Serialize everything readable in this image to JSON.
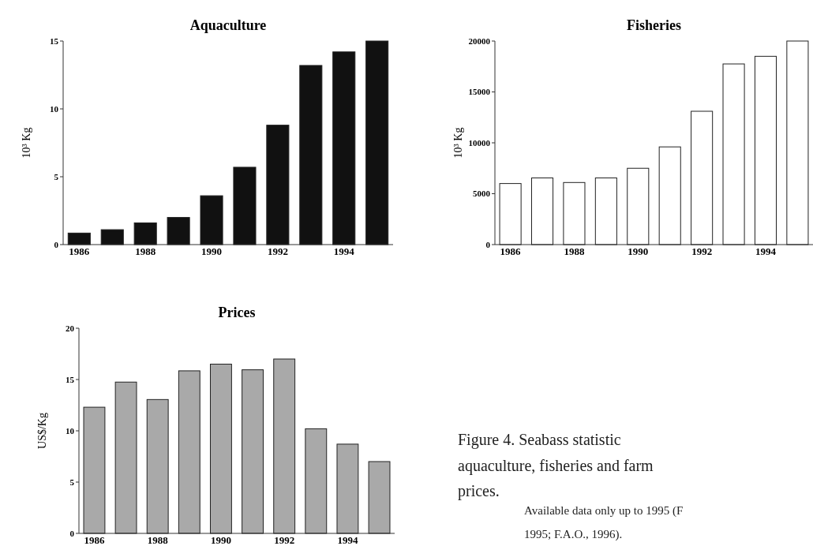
{
  "chart_data": [
    {
      "type": "bar",
      "title": "Aquaculture",
      "ylabel": "10³ Kg",
      "categories": [
        "1986",
        null,
        "1988",
        null,
        "1990",
        null,
        "1992",
        null,
        "1994",
        null
      ],
      "values": [
        0.85,
        1.1,
        1.6,
        2.0,
        3.6,
        5.7,
        8.8,
        13.2,
        14.2,
        15
      ],
      "color": "#111111",
      "ylim": [
        0,
        15
      ],
      "yticks": [
        0,
        5,
        10,
        15
      ],
      "grid": false
    },
    {
      "type": "bar",
      "title": "Fisheries",
      "ylabel": "10³ Kg",
      "categories": [
        "1986",
        null,
        "1988",
        null,
        "1990",
        null,
        "1992",
        null,
        "1994",
        null
      ],
      "values": [
        6000,
        6550,
        6100,
        6550,
        7500,
        9600,
        13100,
        17750,
        18500,
        20000
      ],
      "color": "#ffffff",
      "ylim": [
        0,
        20000
      ],
      "yticks": [
        0,
        5000,
        10000,
        15000,
        20000
      ],
      "grid": false
    },
    {
      "type": "bar",
      "title": "Prices",
      "ylabel": "US$/Kg",
      "categories": [
        "1986",
        null,
        "1988",
        null,
        "1990",
        null,
        "1992",
        null,
        "1994",
        null
      ],
      "values": [
        12.3,
        14.75,
        13.05,
        15.85,
        16.5,
        15.95,
        17.0,
        10.2,
        8.7,
        7.0
      ],
      "color": "#a9a9a9",
      "ylim": [
        0,
        20
      ],
      "yticks": [
        0,
        5,
        10,
        15,
        20
      ],
      "grid": false
    },
    {
      "type": "other",
      "annotations": [
        "Figure 4. Seabass statistic",
        "aquaculture, fisheries and farm",
        "prices.",
        "Available data only up to 1995 (F",
        "1995; F.A.O., 1996)."
      ]
    }
  ]
}
